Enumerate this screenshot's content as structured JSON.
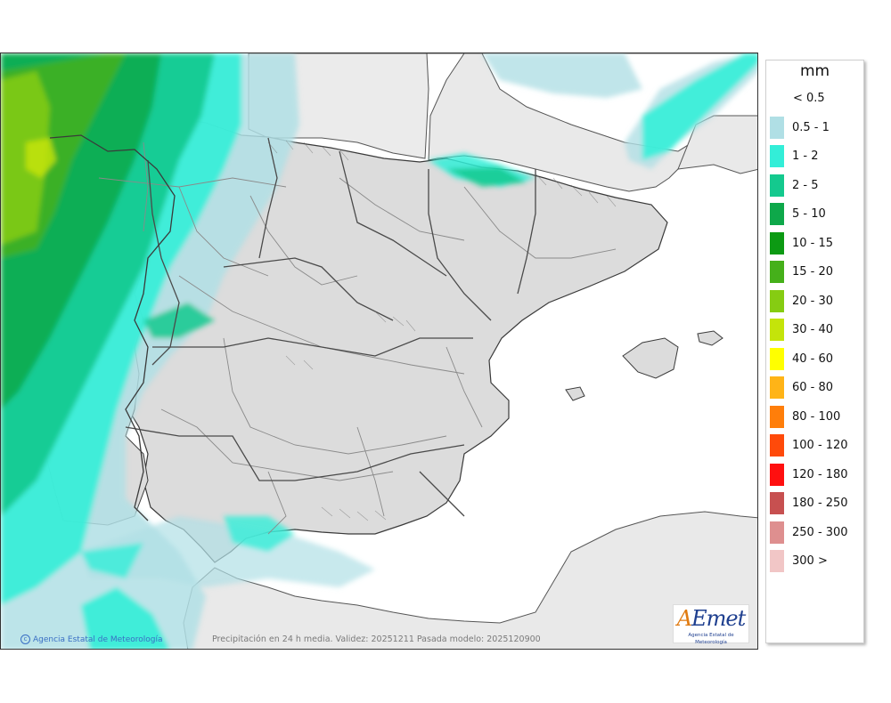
{
  "map": {
    "caption": "Precipitación en 24 h media. Validez: 20251211 Pasada modelo: 2025120900",
    "credit": "Agencia Estatal de Meteorología",
    "credit_icon": "copyright-icon",
    "logo_text": "AEmet",
    "logo_subtitle": "Agencia Estatal de Meteorología"
  },
  "legend": {
    "unit": "mm",
    "classes": [
      {
        "label": "< 0.5",
        "color": ""
      },
      {
        "label": "0.5 - 1",
        "color": "#b0dfe5"
      },
      {
        "label": "1 - 2",
        "color": "#33eed8"
      },
      {
        "label": "2 - 5",
        "color": "#14c98e"
      },
      {
        "label": "5 - 10",
        "color": "#0ea84a"
      },
      {
        "label": "10 - 15",
        "color": "#0c9a13"
      },
      {
        "label": "15 - 20",
        "color": "#45b01a"
      },
      {
        "label": "20 - 30",
        "color": "#86cc12"
      },
      {
        "label": "30 - 40",
        "color": "#c4e40a"
      },
      {
        "label": "40 - 60",
        "color": "#ffff00"
      },
      {
        "label": "60 - 80",
        "color": "#ffb417"
      },
      {
        "label": "80 - 100",
        "color": "#ff7e0a"
      },
      {
        "label": "100 - 120",
        "color": "#ff4a0a"
      },
      {
        "label": "120 - 180",
        "color": "#ff0f0f"
      },
      {
        "label": "180 - 250",
        "color": "#c75050"
      },
      {
        "label": "250 - 300",
        "color": "#de8f8f"
      },
      {
        "label": "300 >",
        "color": "#f1c6c6"
      }
    ]
  },
  "colors": {
    "land": "#dcdcdc",
    "sea": "#ffffff",
    "border": "#4a4a4a",
    "province_border": "#8a8a8a"
  }
}
